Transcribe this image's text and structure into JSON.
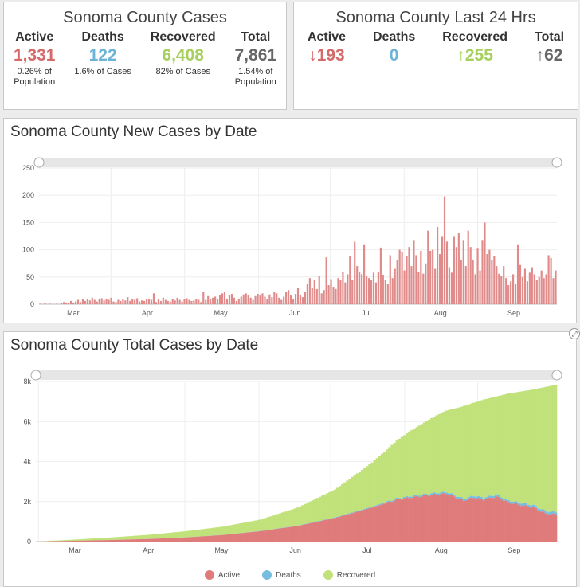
{
  "summary": {
    "title": "Sonoma County Cases",
    "stats": [
      {
        "label": "Active",
        "value": "1,331",
        "sub": "0.26% of\nPopulation",
        "color": "#d46a6a"
      },
      {
        "label": "Deaths",
        "value": "122",
        "sub": "1.6% of Cases",
        "color": "#6cb4d6"
      },
      {
        "label": "Recovered",
        "value": "6,408",
        "sub": "82% of Cases",
        "color": "#a6d05c"
      },
      {
        "label": "Total",
        "value": "7,861",
        "sub": "1.54% of\nPopulation",
        "color": "#666666"
      }
    ]
  },
  "last24": {
    "title": "Sonoma County Last 24 Hrs",
    "stats": [
      {
        "label": "Active",
        "value": "↓193",
        "color": "#d46a6a"
      },
      {
        "label": "Deaths",
        "value": "0",
        "color": "#6cb4d6"
      },
      {
        "label": "Recovered",
        "value": "↑255",
        "color": "#a6d05c"
      },
      {
        "label": "Total",
        "value": "↑62",
        "color": "#666666"
      }
    ]
  },
  "colors": {
    "active": "#e07b7b",
    "deaths": "#76bde0",
    "recovered": "#c1e27a",
    "bar": "#e08a8a"
  },
  "chart_data": [
    {
      "type": "bar",
      "title": "Sonoma County New Cases by Date",
      "x_tick_labels": [
        "Mar",
        "Apr",
        "May",
        "Jun",
        "Jul",
        "Aug",
        "Sep"
      ],
      "y_ticks": [
        "0",
        "50",
        "100",
        "150",
        "200",
        "250"
      ],
      "ylim": [
        0,
        250
      ],
      "grid": true,
      "values": [
        1,
        0,
        2,
        0,
        1,
        0,
        0,
        1,
        0,
        2,
        4,
        3,
        2,
        6,
        3,
        5,
        8,
        4,
        10,
        6,
        9,
        7,
        12,
        8,
        5,
        9,
        11,
        7,
        10,
        8,
        12,
        5,
        4,
        8,
        6,
        9,
        7,
        13,
        6,
        9,
        8,
        11,
        5,
        7,
        6,
        10,
        9,
        8,
        20,
        4,
        9,
        6,
        12,
        8,
        6,
        5,
        10,
        7,
        12,
        8,
        5,
        9,
        11,
        8,
        6,
        7,
        10,
        8,
        4,
        22,
        8,
        15,
        9,
        12,
        14,
        10,
        17,
        20,
        22,
        9,
        16,
        19,
        12,
        6,
        9,
        14,
        18,
        20,
        17,
        12,
        8,
        15,
        19,
        16,
        20,
        14,
        10,
        18,
        13,
        23,
        20,
        12,
        8,
        14,
        22,
        26,
        16,
        10,
        19,
        30,
        17,
        13,
        22,
        38,
        48,
        30,
        45,
        28,
        52,
        20,
        26,
        86,
        35,
        46,
        32,
        28,
        48,
        45,
        60,
        40,
        55,
        89,
        44,
        115,
        70,
        60,
        55,
        110,
        52,
        48,
        44,
        58,
        40,
        60,
        104,
        54,
        45,
        38,
        90,
        48,
        65,
        82,
        100,
        95,
        62,
        88,
        105,
        70,
        118,
        90,
        60,
        98,
        56,
        75,
        135,
        98,
        100,
        65,
        142,
        92,
        125,
        198,
        115,
        68,
        58,
        125,
        105,
        130,
        82,
        118,
        70,
        135,
        105,
        82,
        55,
        102,
        62,
        118,
        150,
        92,
        100,
        82,
        88,
        70,
        56,
        52,
        70,
        48,
        35,
        42,
        55,
        38,
        110,
        72,
        50,
        65,
        42,
        58,
        68,
        55,
        45,
        50,
        62,
        48,
        55,
        90,
        85,
        48,
        62
      ]
    },
    {
      "type": "area",
      "title": "Sonoma County Total Cases by Date",
      "x_tick_labels": [
        "Mar",
        "Apr",
        "May",
        "Jun",
        "Jul",
        "Aug",
        "Sep"
      ],
      "y_ticks": [
        "0",
        "2k",
        "4k",
        "6k",
        "8k"
      ],
      "ylim": [
        0,
        8000
      ],
      "grid": true,
      "series": [
        {
          "name": "Active",
          "x_day": [
            0,
            15,
            30,
            45,
            60,
            75,
            90,
            105,
            120,
            135,
            145,
            150,
            160,
            165,
            172,
            176,
            180,
            185,
            190,
            200,
            205,
            210
          ],
          "values": [
            0,
            40,
            80,
            130,
            210,
            330,
            520,
            780,
            1180,
            1700,
            2100,
            2200,
            2350,
            2400,
            2050,
            2200,
            2100,
            2250,
            1950,
            1700,
            1400,
            1331
          ]
        },
        {
          "name": "Deaths",
          "x_day": [
            0,
            30,
            60,
            90,
            120,
            150,
            180,
            210
          ],
          "values": [
            0,
            2,
            4,
            10,
            25,
            60,
            95,
            122
          ]
        },
        {
          "name": "Recovered",
          "x_day": [
            0,
            15,
            30,
            45,
            60,
            75,
            90,
            105,
            120,
            135,
            145,
            150,
            160,
            165,
            172,
            176,
            180,
            185,
            190,
            200,
            205,
            210
          ],
          "values": [
            0,
            60,
            130,
            210,
            300,
            410,
            580,
            880,
            1400,
            2200,
            2900,
            3250,
            3850,
            4100,
            4500,
            4700,
            4950,
            5200,
            5500,
            6000,
            6250,
            6408
          ]
        }
      ],
      "totals": {
        "x_day": [
          0,
          15,
          30,
          45,
          60,
          75,
          90,
          105,
          120,
          135,
          145,
          150,
          160,
          165,
          170,
          180,
          190,
          200,
          210
        ],
        "values": [
          0,
          100,
          210,
          340,
          520,
          750,
          1100,
          1700,
          2600,
          3950,
          5050,
          5500,
          6250,
          6550,
          6700,
          7100,
          7400,
          7600,
          7861
        ]
      },
      "legend": [
        "Active",
        "Deaths",
        "Recovered"
      ]
    }
  ]
}
